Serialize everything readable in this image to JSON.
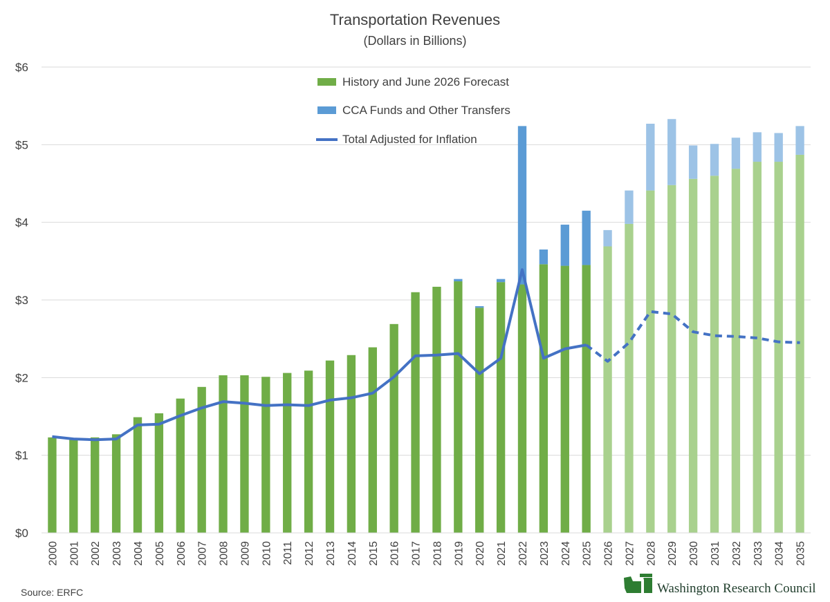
{
  "chart_data": {
    "type": "bar",
    "title": "Transportation Revenues",
    "subtitle": "(Dollars in Billions)",
    "categories": [
      "2000",
      "2001",
      "2002",
      "2003",
      "2004",
      "2005",
      "2006",
      "2007",
      "2008",
      "2009",
      "2010",
      "2011",
      "2012",
      "2013",
      "2014",
      "2015",
      "2016",
      "2017",
      "2018",
      "2019",
      "2020",
      "2021",
      "2022",
      "2023",
      "2024",
      "2025",
      "2026",
      "2027",
      "2028",
      "2029",
      "2030",
      "2031",
      "2032",
      "2033",
      "2034",
      "2035"
    ],
    "y_ticks": [
      "$0",
      "$1",
      "$2",
      "$3",
      "$4",
      "$5",
      "$6"
    ],
    "ylim": [
      0,
      6
    ],
    "grid": true,
    "legend_position": "top-center",
    "forecast_start": "2026",
    "series": [
      {
        "name": "History and June 2026 Forecast",
        "kind": "stacked-bar",
        "color": "#70ad47",
        "forecast_color": "#a9d18e",
        "values": [
          1.23,
          1.22,
          1.23,
          1.27,
          1.49,
          1.54,
          1.73,
          1.88,
          2.03,
          2.03,
          2.01,
          2.06,
          2.09,
          2.22,
          2.29,
          2.39,
          2.69,
          3.1,
          3.17,
          3.24,
          2.9,
          3.23,
          3.2,
          3.46,
          3.44,
          3.45,
          3.69,
          3.98,
          4.41,
          4.48,
          4.56,
          4.6,
          4.69,
          4.78,
          4.78,
          4.87
        ]
      },
      {
        "name": "CCA Funds and Other Transfers",
        "kind": "stacked-bar",
        "color": "#5b9bd5",
        "forecast_color": "#9dc3e6",
        "values": [
          0,
          0,
          0,
          0,
          0,
          0,
          0,
          0,
          0,
          0,
          0,
          0,
          0,
          0,
          0,
          0,
          0,
          0,
          0,
          0.03,
          0.02,
          0.04,
          2.04,
          0.19,
          0.53,
          0.7,
          0.21,
          0.43,
          0.86,
          0.85,
          0.43,
          0.41,
          0.4,
          0.38,
          0.37,
          0.37
        ]
      },
      {
        "name": "Total Adjusted for Inflation",
        "kind": "line",
        "color": "#4472c4",
        "forecast_style": "dashed",
        "values": [
          1.24,
          1.21,
          1.2,
          1.21,
          1.39,
          1.4,
          1.51,
          1.61,
          1.69,
          1.67,
          1.64,
          1.65,
          1.64,
          1.71,
          1.74,
          1.8,
          2.01,
          2.28,
          2.29,
          2.31,
          2.05,
          2.25,
          3.39,
          2.25,
          2.37,
          2.42,
          2.21,
          2.45,
          2.85,
          2.82,
          2.59,
          2.54,
          2.53,
          2.51,
          2.46,
          2.45
        ]
      }
    ],
    "source": "Source: ERFC",
    "brand": "Washington Research Council"
  }
}
